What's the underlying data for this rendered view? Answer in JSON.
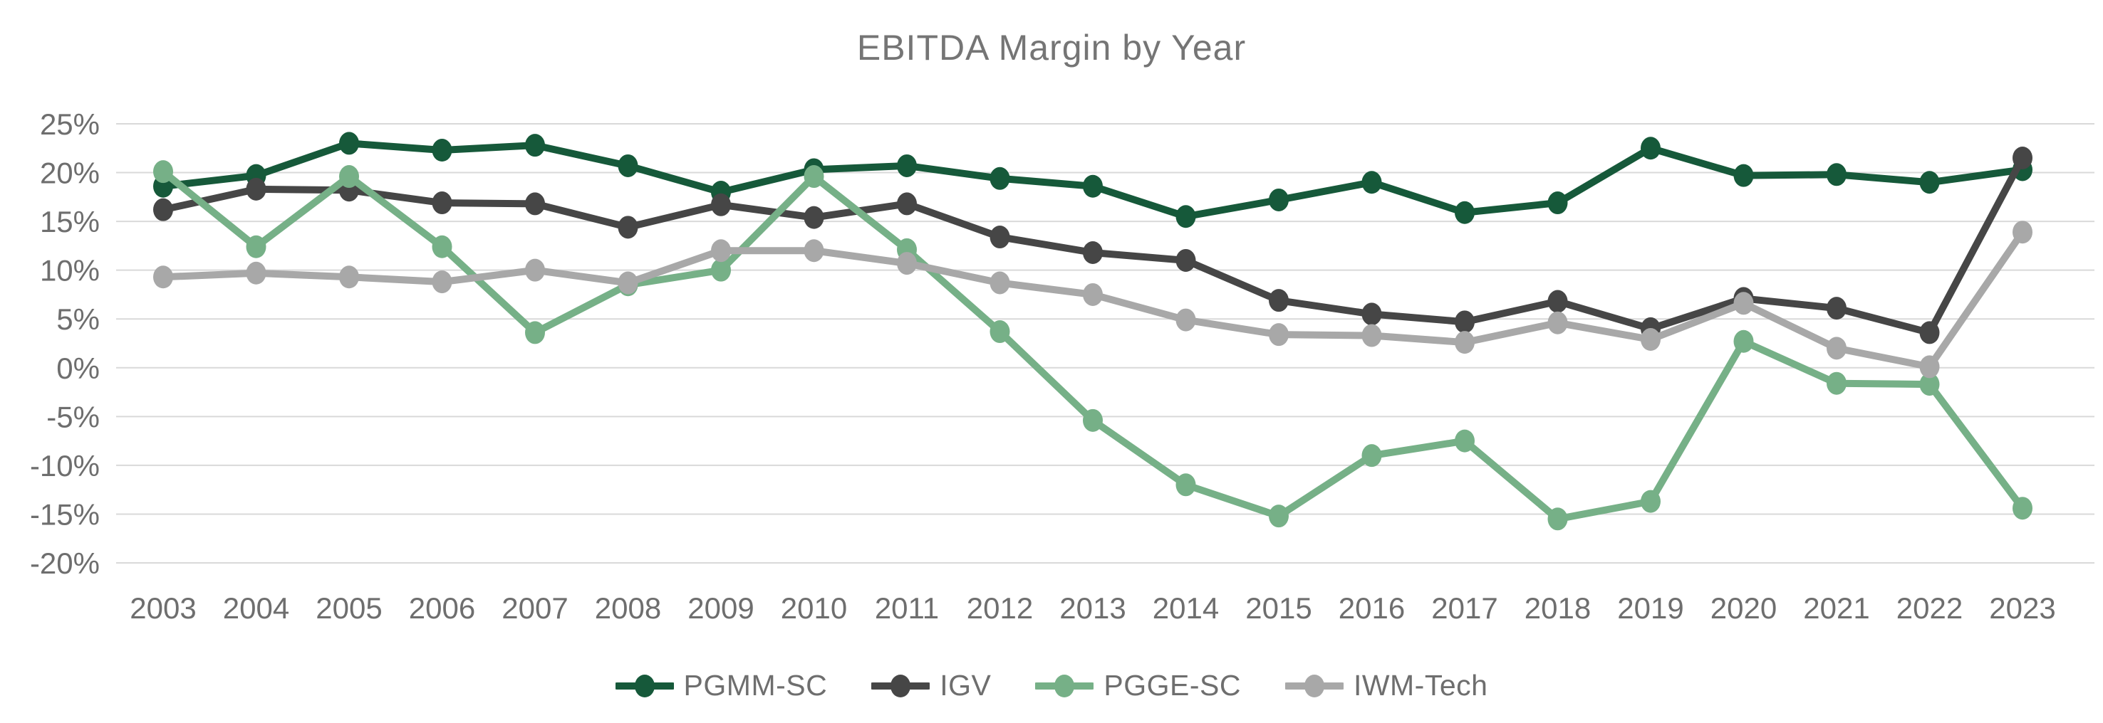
{
  "chart_data": {
    "type": "line",
    "title": "EBITDA Margin by Year",
    "x_labels": [
      "2003",
      "2004",
      "2005",
      "2006",
      "2007",
      "2008",
      "2009",
      "2010",
      "2011",
      "2012",
      "2013",
      "2014",
      "2015",
      "2016",
      "2017",
      "2018",
      "2019",
      "2020",
      "2021",
      "2022",
      "2023"
    ],
    "y_tick_labels": [
      "25%",
      "20%",
      "15%",
      "10%",
      "5%",
      "0%",
      "-5%",
      "-10%",
      "-15%",
      "-20%"
    ],
    "y_ticks": [
      25,
      20,
      15,
      10,
      5,
      0,
      -5,
      -10,
      -15,
      -20
    ],
    "ylim": [
      -20,
      25
    ],
    "ytick_step": 5,
    "ytick_format": "percent",
    "grid": "horizontal",
    "legend_position": "bottom",
    "series": [
      {
        "name": "PGMM-SC",
        "color": "#16593a",
        "values": [
          18.6,
          19.7,
          23.0,
          22.3,
          22.8,
          20.7,
          18.0,
          20.3,
          20.7,
          19.4,
          18.6,
          15.5,
          17.2,
          19.0,
          15.9,
          16.9,
          22.5,
          19.7,
          19.8,
          19.0,
          20.3
        ]
      },
      {
        "name": "IGV",
        "color": "#464646",
        "values": [
          16.2,
          18.3,
          18.2,
          16.9,
          16.8,
          14.4,
          16.7,
          15.4,
          16.8,
          13.4,
          11.8,
          11.0,
          6.9,
          5.5,
          4.7,
          6.8,
          4.0,
          7.1,
          6.1,
          3.6,
          21.5
        ]
      },
      {
        "name": "PGGE-SC",
        "color": "#76b087",
        "values": [
          20.1,
          12.4,
          19.6,
          12.4,
          3.6,
          8.5,
          10.0,
          19.6,
          12.1,
          3.7,
          -5.4,
          -12.0,
          -15.2,
          -9.0,
          -7.5,
          -15.5,
          -13.7,
          2.7,
          -1.6,
          -1.7,
          -14.4
        ]
      },
      {
        "name": "IWM-Tech",
        "color": "#a8a8a8",
        "values": [
          9.3,
          9.7,
          9.3,
          8.8,
          10.0,
          8.7,
          12.0,
          12.0,
          10.7,
          8.7,
          7.5,
          4.9,
          3.4,
          3.3,
          2.6,
          4.6,
          2.9,
          6.6,
          2.0,
          0.1,
          13.9
        ]
      }
    ],
    "style": {
      "gridline_color": "#d9d9d9",
      "title_color": "#757575",
      "tick_label_color": "#6e6e6e",
      "background": "#ffffff"
    }
  }
}
